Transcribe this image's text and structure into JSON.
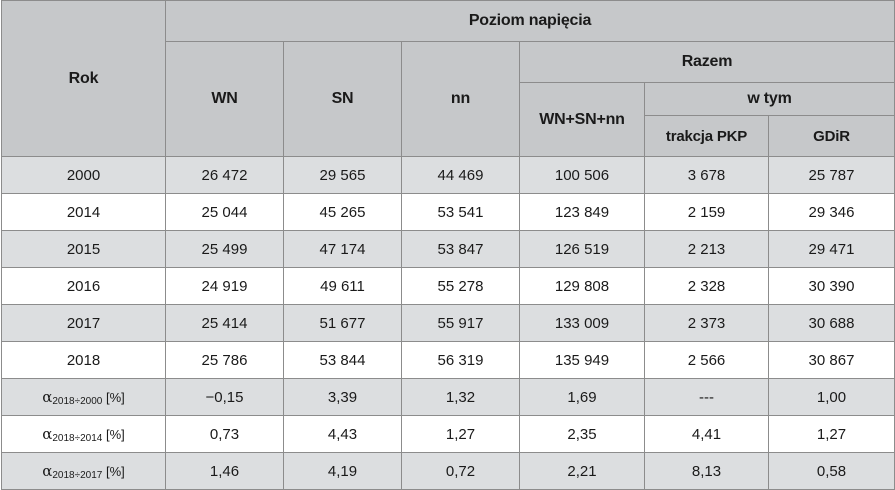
{
  "header": {
    "rok": "Rok",
    "poziom": "Poziom napięcia",
    "wn": "WN",
    "sn": "SN",
    "nn": "nn",
    "razem": "Razem",
    "sum": "WN+SN+nn",
    "wtym": "w tym",
    "trakcja": "trakcja PKP",
    "gdir": "GDiR"
  },
  "rows": [
    {
      "rok": "2000",
      "wn": "26 472",
      "sn": "29 565",
      "nn": "44 469",
      "sum": "100 506",
      "pkp": "3 678",
      "gdir": "25 787"
    },
    {
      "rok": "2014",
      "wn": "25 044",
      "sn": "45 265",
      "nn": "53 541",
      "sum": "123 849",
      "pkp": "2 159",
      "gdir": "29 346"
    },
    {
      "rok": "2015",
      "wn": "25 499",
      "sn": "47 174",
      "nn": "53 847",
      "sum": "126 519",
      "pkp": "2 213",
      "gdir": "29 471"
    },
    {
      "rok": "2016",
      "wn": "24 919",
      "sn": "49 611",
      "nn": "55 278",
      "sum": "129 808",
      "pkp": "2 328",
      "gdir": "30 390"
    },
    {
      "rok": "2017",
      "wn": "25 414",
      "sn": "51 677",
      "nn": "55 917",
      "sum": "133 009",
      "pkp": "2 373",
      "gdir": "30 688"
    },
    {
      "rok": "2018",
      "wn": "25 786",
      "sn": "53 844",
      "nn": "56 319",
      "sum": "135 949",
      "pkp": "2 566",
      "gdir": "30 867"
    }
  ],
  "alpha_rows": [
    {
      "sym": "α",
      "sub": "2018÷2000",
      "unit": " [%]",
      "wn": "−0,15",
      "sn": "3,39",
      "nn": "1,32",
      "sum": "1,69",
      "pkp": "---",
      "gdir": "1,00"
    },
    {
      "sym": "α",
      "sub": "2018÷2014",
      "unit": " [%]",
      "wn": "0,73",
      "sn": "4,43",
      "nn": "1,27",
      "sum": "2,35",
      "pkp": "4,41",
      "gdir": "1,27"
    },
    {
      "sym": "α",
      "sub": "2018÷2017",
      "unit": " [%]",
      "wn": "1,46",
      "sn": "4,19",
      "nn": "0,72",
      "sum": "2,21",
      "pkp": "8,13",
      "gdir": "0,58"
    }
  ]
}
